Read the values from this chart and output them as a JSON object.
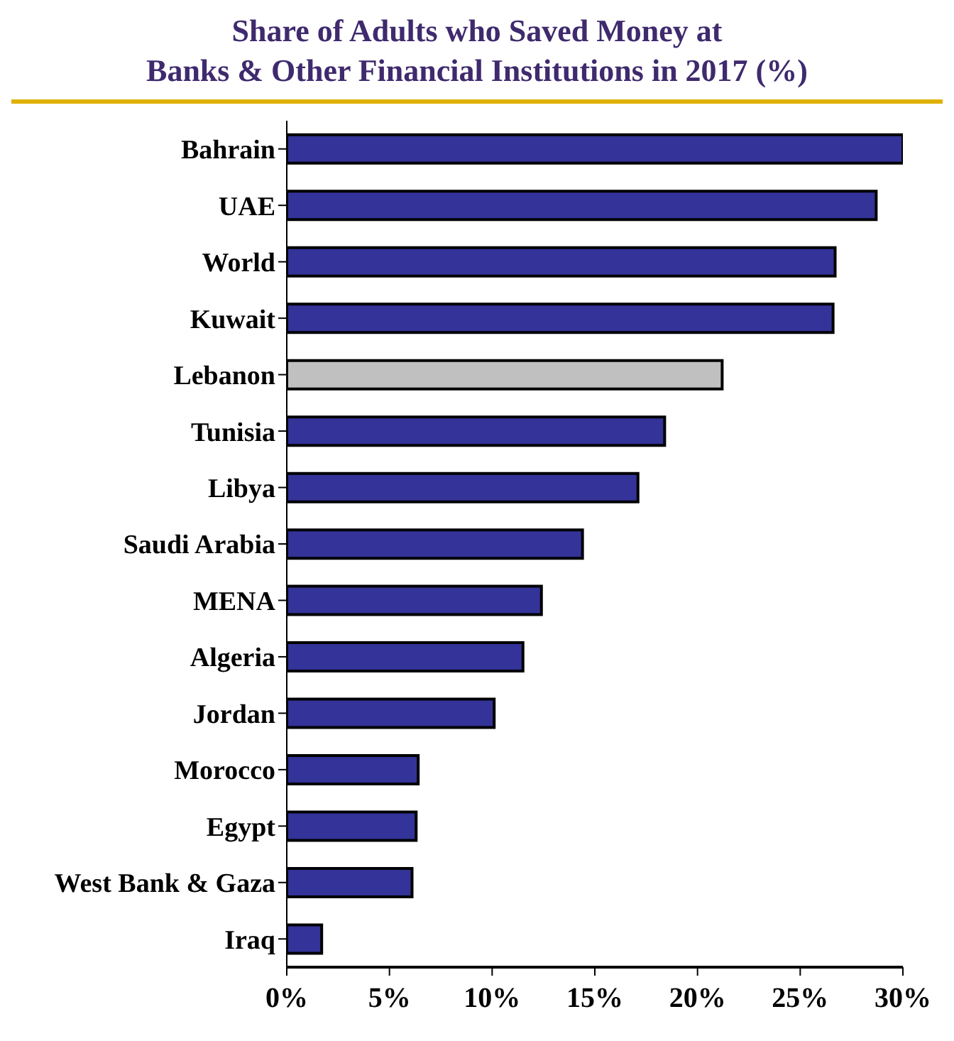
{
  "chart_data": {
    "type": "bar",
    "orientation": "horizontal",
    "title": "Share of Adults who Saved Money at\nBanks & Other Financial Institutions in 2017 (%)",
    "categories": [
      "Bahrain",
      "UAE",
      "World",
      "Kuwait",
      "Lebanon",
      "Tunisia",
      "Libya",
      "Saudi Arabia",
      "MENA",
      "Algeria",
      "Jordan",
      "Morocco",
      "Egypt",
      "West Bank & Gaza",
      "Iraq"
    ],
    "values": [
      30,
      28.7,
      26.7,
      26.6,
      21.2,
      18.4,
      17.1,
      14.4,
      12.4,
      11.5,
      10.1,
      6.4,
      6.3,
      6.1,
      1.7
    ],
    "colors": [
      "#333399",
      "#333399",
      "#333399",
      "#333399",
      "#c0c0c0",
      "#333399",
      "#333399",
      "#333399",
      "#333399",
      "#333399",
      "#333399",
      "#333399",
      "#333399",
      "#333399",
      "#333399"
    ],
    "xlim": [
      0,
      30
    ],
    "xticks": [
      {
        "value": 0,
        "label": "0%"
      },
      {
        "value": 5,
        "label": "5%"
      },
      {
        "value": 10,
        "label": "10%"
      },
      {
        "value": 15,
        "label": "15%"
      },
      {
        "value": 20,
        "label": "20%"
      },
      {
        "value": 25,
        "label": "25%"
      },
      {
        "value": 30,
        "label": "30%"
      }
    ],
    "grid": false,
    "legend": false
  }
}
